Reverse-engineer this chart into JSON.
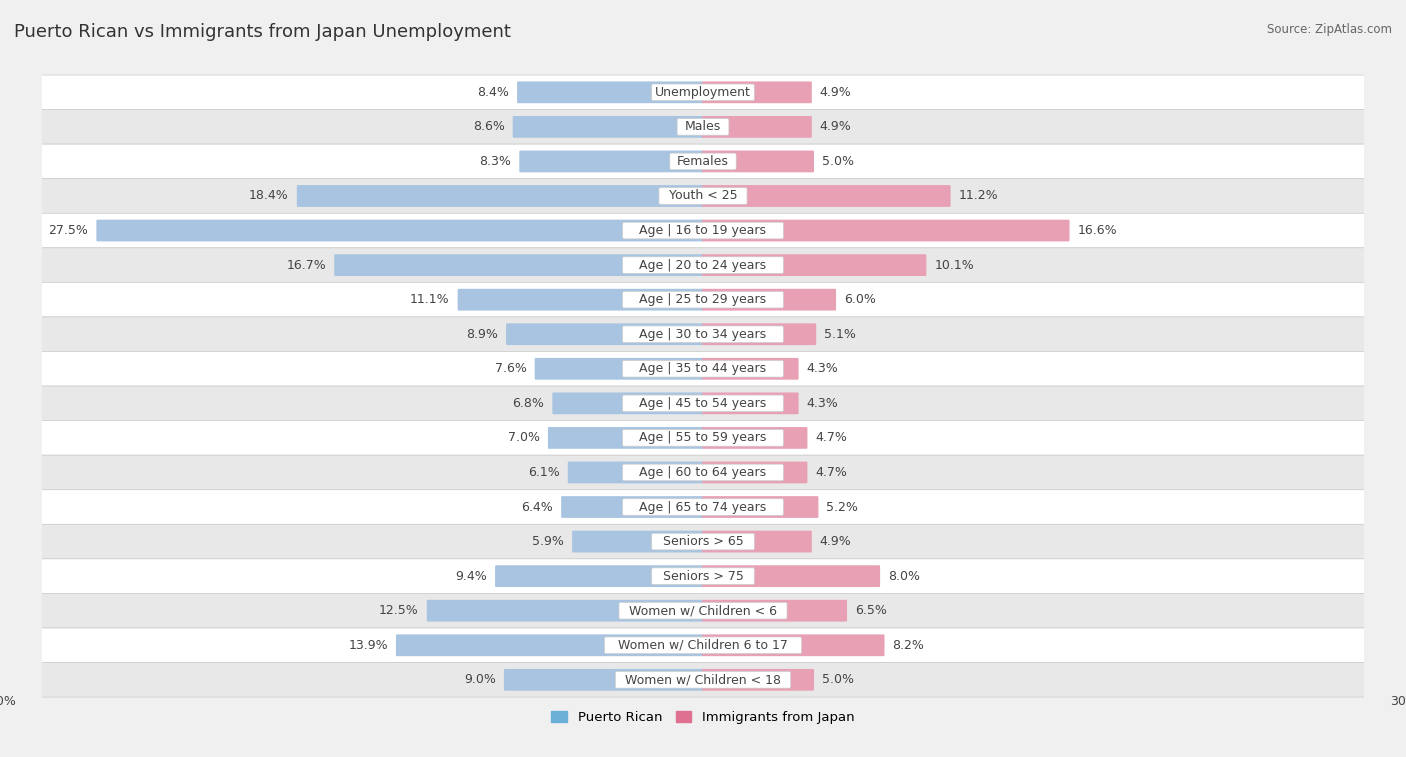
{
  "title": "Puerto Rican vs Immigrants from Japan Unemployment",
  "source": "Source: ZipAtlas.com",
  "categories": [
    "Unemployment",
    "Males",
    "Females",
    "Youth < 25",
    "Age | 16 to 19 years",
    "Age | 20 to 24 years",
    "Age | 25 to 29 years",
    "Age | 30 to 34 years",
    "Age | 35 to 44 years",
    "Age | 45 to 54 years",
    "Age | 55 to 59 years",
    "Age | 60 to 64 years",
    "Age | 65 to 74 years",
    "Seniors > 65",
    "Seniors > 75",
    "Women w/ Children < 6",
    "Women w/ Children 6 to 17",
    "Women w/ Children < 18"
  ],
  "puerto_rican": [
    8.4,
    8.6,
    8.3,
    18.4,
    27.5,
    16.7,
    11.1,
    8.9,
    7.6,
    6.8,
    7.0,
    6.1,
    6.4,
    5.9,
    9.4,
    12.5,
    13.9,
    9.0
  ],
  "immigrants_japan": [
    4.9,
    4.9,
    5.0,
    11.2,
    16.6,
    10.1,
    6.0,
    5.1,
    4.3,
    4.3,
    4.7,
    4.7,
    5.2,
    4.9,
    8.0,
    6.5,
    8.2,
    5.0
  ],
  "puerto_rican_color": "#a8c4e0",
  "immigrants_japan_color": "#e8a0b4",
  "background_color": "#f0f0f0",
  "axis_max": 30.0,
  "label_fontsize": 9,
  "title_fontsize": 13,
  "legend_pr_color": "#6baed6",
  "legend_ij_color": "#e07090"
}
